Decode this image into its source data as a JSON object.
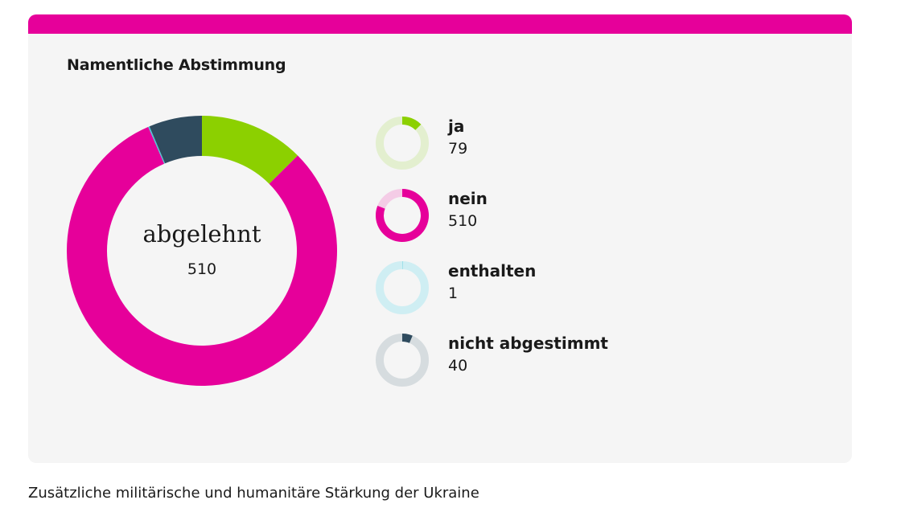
{
  "chart_data": {
    "type": "pie",
    "title": "Namentliche Abstimmung",
    "result_label": "abgelehnt",
    "result_count": "510",
    "categories": [
      "ja",
      "nein",
      "enthalten",
      "nicht abgestimmt"
    ],
    "values": [
      79,
      510,
      1,
      40
    ],
    "colors": [
      "#8cd000",
      "#e6009a",
      "#4cc6d6",
      "#2f4b5e"
    ],
    "track_colors": [
      "#e3efcf",
      "#f4cce6",
      "#cfeef3",
      "#d6dcdf"
    ]
  },
  "caption": "Zusätzliche militärische und humanitäre Stärkung der Ukraine"
}
